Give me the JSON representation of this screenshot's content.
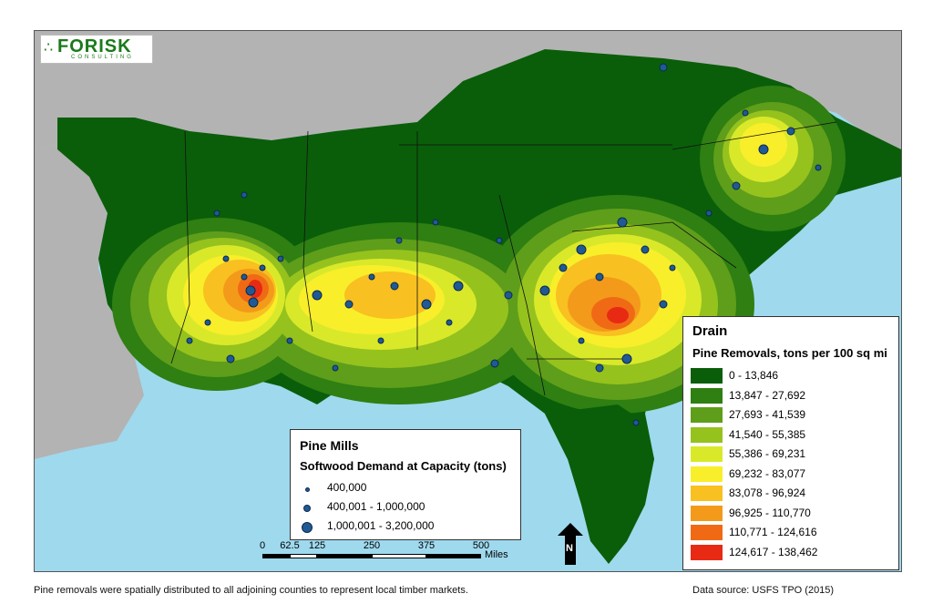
{
  "logo": {
    "name": "FORISK",
    "subtitle": "CONSULTING"
  },
  "drain_legend": {
    "title": "Drain",
    "subtitle": "Pine Removals, tons per 100 sq mi",
    "classes": [
      {
        "label": "0 - 13,846",
        "color": "#0a5e0a"
      },
      {
        "label": "13,847 - 27,692",
        "color": "#2f7f12"
      },
      {
        "label": "27,693 - 41,539",
        "color": "#5f9e1a"
      },
      {
        "label": "41,540 - 55,385",
        "color": "#96c21e"
      },
      {
        "label": "55,386 - 69,231",
        "color": "#d9e92a"
      },
      {
        "label": "69,232 - 83,077",
        "color": "#f9ee2a"
      },
      {
        "label": "83,078 - 96,924",
        "color": "#f8c020"
      },
      {
        "label": "96,925 - 110,770",
        "color": "#f39a1a"
      },
      {
        "label": "110,771 - 124,616",
        "color": "#f06a15"
      },
      {
        "label": "124,617 - 138,462",
        "color": "#e82a14"
      }
    ]
  },
  "mills_legend": {
    "title": "Pine Mills",
    "subtitle": "Softwood Demand at Capacity (tons)",
    "classes": [
      {
        "label": "400,000",
        "size": 3
      },
      {
        "label": "400,001 - 1,000,000",
        "size": 6
      },
      {
        "label": "1,000,001 - 3,200,000",
        "size": 10
      }
    ]
  },
  "scale": {
    "ticks": [
      "0",
      "62.5",
      "125",
      "250",
      "375",
      "500"
    ],
    "units": "Miles"
  },
  "north": {
    "label": "N"
  },
  "footer": {
    "note": "Pine removals were spatially distributed to all adjoining counties to represent local timber markets.",
    "source": "Data source: USFS TPO (2015)"
  },
  "colors": {
    "water": "#9fd9ee",
    "land_outside": "#b3b3b3",
    "mill_dot": "#1f5a96"
  }
}
